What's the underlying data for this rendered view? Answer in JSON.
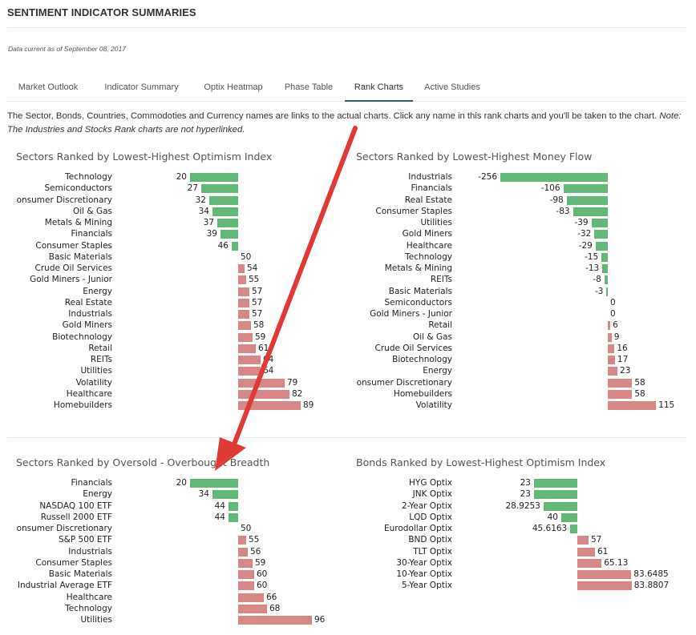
{
  "page": {
    "title": "SENTIMENT INDICATOR SUMMARIES",
    "as_of": "Data current as of September 08, 2017",
    "intro_text": "The Sector, Bonds, Countries, Commodoties and Currency names are links to the actual charts. Click any name in this rank charts and you'll be taken to the chart. ",
    "intro_note": "Note: The Industries and Stocks Rank charts are not hyperlinked."
  },
  "tabs": [
    {
      "label": "Market Outlook"
    },
    {
      "label": "Indicator Summary"
    },
    {
      "label": "Optix Heatmap"
    },
    {
      "label": "Phase Table"
    },
    {
      "label": "Rank Charts",
      "active": true
    },
    {
      "label": "Active Studies"
    }
  ],
  "colors": {
    "positive": "#62b977",
    "negative": "#d98686",
    "tab_accent": "#2e5b87",
    "annotation_arrow": "#e03a36"
  },
  "chart_data": [
    {
      "type": "bar",
      "title": "Sectors Ranked by Lowest-Highest Optimism Index",
      "baseline": 50,
      "categories": [
        "Technology",
        "Semiconductors",
        "Consumer Discretionary",
        "Oil & Gas",
        "Metals & Mining",
        "Financials",
        "Consumer Staples",
        "Basic Materials",
        "Crude Oil Services",
        "Gold Miners - Junior",
        "Energy",
        "Real Estate",
        "Industrials",
        "Gold Miners",
        "Biotechnology",
        "Retail",
        "REITs",
        "Utilities",
        "Volatility",
        "Healthcare",
        "Homebuilders"
      ],
      "values": [
        20,
        27,
        32,
        34,
        37,
        39,
        46,
        50,
        54,
        55,
        57,
        57,
        57,
        58,
        59,
        61,
        64,
        64,
        79,
        82,
        89
      ],
      "labels": [
        "20",
        "27",
        "32",
        "34",
        "37",
        "39",
        "46",
        "50",
        "54",
        "55",
        "57",
        "57",
        "57",
        "58",
        "59",
        "61",
        "64",
        "64",
        "79",
        "82",
        "89"
      ]
    },
    {
      "type": "bar",
      "title": "Sectors Ranked by Lowest-Highest Money Flow",
      "baseline": 0,
      "categories": [
        "Industrials",
        "Financials",
        "Real Estate",
        "Consumer Staples",
        "Utilities",
        "Gold Miners",
        "Healthcare",
        "Technology",
        "Metals & Mining",
        "REITs",
        "Basic Materials",
        "Semiconductors",
        "Gold Miners - Junior",
        "Retail",
        "Oil & Gas",
        "Crude Oil Services",
        "Biotechnology",
        "Energy",
        "Consumer Discretionary",
        "Homebuilders",
        "Volatility"
      ],
      "values": [
        -256,
        -106,
        -98,
        -83,
        -39,
        -32,
        -29,
        -15,
        -13,
        -8,
        -3,
        0,
        0,
        6,
        9,
        16,
        17,
        23,
        58,
        58,
        115
      ],
      "labels": [
        "-256",
        "-106",
        "-98",
        "-83",
        "-39",
        "-32",
        "-29",
        "-15",
        "-13",
        "-8",
        "-3",
        "0",
        "0",
        "6",
        "9",
        "16",
        "17",
        "23",
        "58",
        "58",
        "115"
      ]
    },
    {
      "type": "bar",
      "title": "Sectors Ranked by Oversold - Overbought Breadth",
      "baseline": 50,
      "categories": [
        "Financials",
        "Energy",
        "NASDAQ 100 ETF",
        "Russell 2000 ETF",
        "Consumer Discretionary",
        "S&P 500 ETF",
        "Industrials",
        "Consumer Staples",
        "Basic Materials",
        "Dow Industrial Average ETF",
        "Healthcare",
        "Technology",
        "Utilities"
      ],
      "values": [
        20,
        34,
        44,
        44,
        50,
        55,
        56,
        59,
        60,
        60,
        66,
        68,
        96
      ],
      "labels": [
        "20",
        "34",
        "44",
        "44",
        "50",
        "55",
        "56",
        "59",
        "60",
        "60",
        "66",
        "68",
        "96"
      ]
    },
    {
      "type": "bar",
      "title": "Bonds Ranked by Lowest-Highest Optimism Index",
      "baseline": 50,
      "categories": [
        "HYG Optix",
        "JNK Optix",
        "2-Year Optix",
        "LQD Optix",
        "Eurodollar Optix",
        "BND Optix",
        "TLT Optix",
        "30-Year Optix",
        "10-Year Optix",
        "5-Year Optix"
      ],
      "values": [
        23,
        23,
        28.9253,
        40,
        45.6163,
        57,
        61,
        65.13,
        83.6485,
        83.8807
      ],
      "labels": [
        "23",
        "23",
        "28.9253",
        "40",
        "45.6163",
        "57",
        "61",
        "65.13",
        "83.6485",
        "83.8807"
      ]
    }
  ]
}
